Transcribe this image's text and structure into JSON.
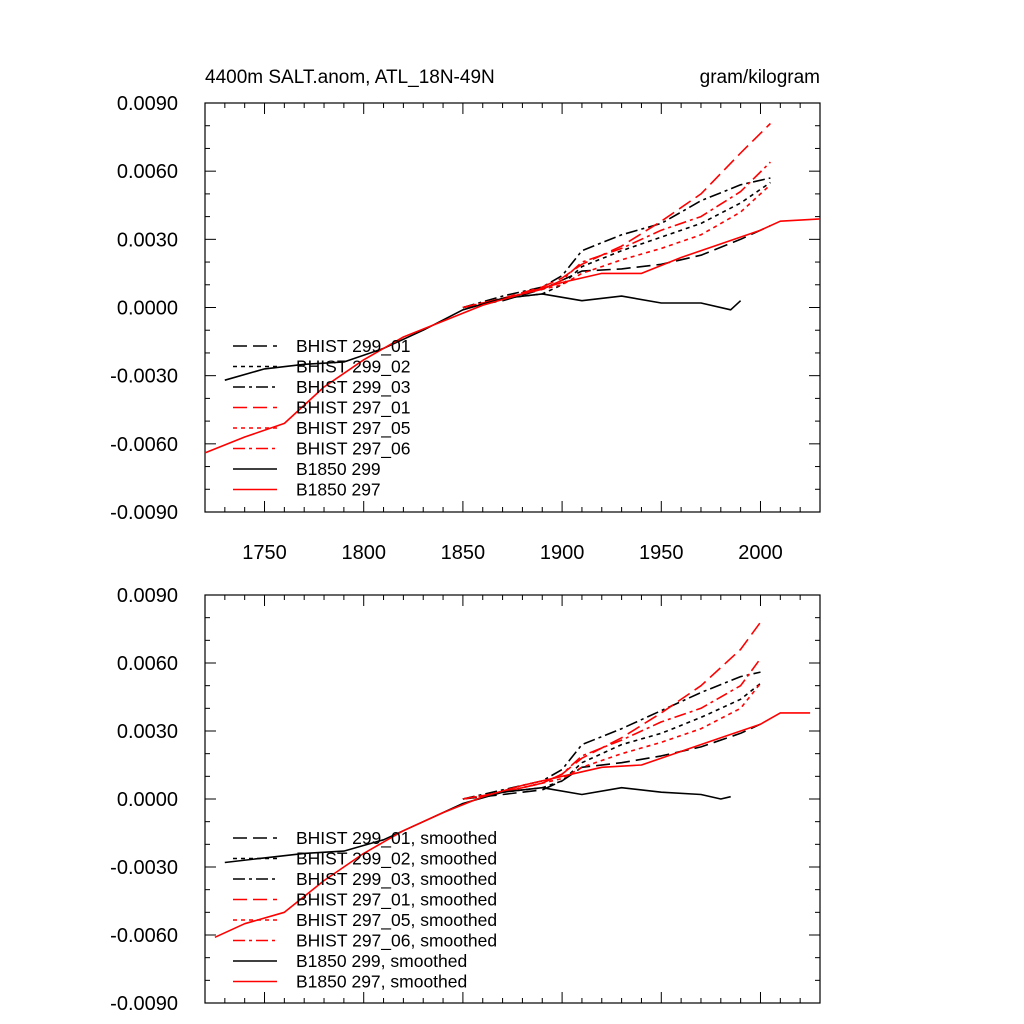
{
  "chart_data": [
    {
      "type": "line",
      "title_left": "4400m SALT.anom, ATL_18N-49N",
      "title_right": "gram/kilogram",
      "xlim": [
        1720,
        2030
      ],
      "ylim": [
        -0.009,
        0.009
      ],
      "xticks": [
        1750,
        1800,
        1850,
        1900,
        1950,
        2000
      ],
      "yticks": [
        -0.009,
        -0.006,
        -0.003,
        0.0,
        0.003,
        0.006,
        0.009
      ],
      "ytick_labels": [
        "-0.0090",
        "-0.0060",
        "-0.0030",
        "0.0000",
        "0.0030",
        "0.0060",
        "0.0090"
      ],
      "legend_position": "lower-left",
      "series": [
        {
          "name": "BHIST 299_01",
          "color": "#000000",
          "dash": "long",
          "x": [
            1850,
            1870,
            1890,
            1900,
            1910,
            1930,
            1950,
            1970,
            1990,
            2005
          ],
          "y": [
            0.0,
            0.0003,
            0.0008,
            0.0012,
            0.0016,
            0.0017,
            0.0019,
            0.0023,
            0.003,
            0.0036
          ]
        },
        {
          "name": "BHIST 299_02",
          "color": "#000000",
          "dash": "short",
          "x": [
            1850,
            1870,
            1890,
            1900,
            1910,
            1930,
            1950,
            1970,
            1990,
            2005
          ],
          "y": [
            0.0,
            0.0004,
            0.0006,
            0.001,
            0.0018,
            0.0025,
            0.0031,
            0.0037,
            0.0046,
            0.0055
          ]
        },
        {
          "name": "BHIST 299_03",
          "color": "#000000",
          "dash": "dashdot",
          "x": [
            1850,
            1870,
            1890,
            1900,
            1910,
            1930,
            1950,
            1970,
            1990,
            2005
          ],
          "y": [
            0.0,
            0.0005,
            0.0009,
            0.0014,
            0.0025,
            0.0032,
            0.0037,
            0.0047,
            0.0054,
            0.0057
          ]
        },
        {
          "name": "BHIST 297_01",
          "color": "#ff0000",
          "dash": "long",
          "x": [
            1850,
            1870,
            1890,
            1900,
            1910,
            1930,
            1950,
            1970,
            1990,
            2005
          ],
          "y": [
            0.0,
            0.0004,
            0.0009,
            0.0013,
            0.0019,
            0.0027,
            0.0038,
            0.005,
            0.0068,
            0.0081
          ]
        },
        {
          "name": "BHIST 297_05",
          "color": "#ff0000",
          "dash": "short",
          "x": [
            1850,
            1870,
            1890,
            1900,
            1910,
            1930,
            1950,
            1970,
            1990,
            2005
          ],
          "y": [
            0.0,
            0.0004,
            0.0008,
            0.001,
            0.0015,
            0.0021,
            0.0026,
            0.0032,
            0.0042,
            0.0054
          ]
        },
        {
          "name": "BHIST 297_06",
          "color": "#ff0000",
          "dash": "dashdot",
          "x": [
            1850,
            1870,
            1890,
            1900,
            1910,
            1930,
            1950,
            1970,
            1990,
            2005
          ],
          "y": [
            0.0,
            0.0004,
            0.0008,
            0.0012,
            0.002,
            0.0026,
            0.0034,
            0.004,
            0.0051,
            0.0064
          ]
        },
        {
          "name": "B1850 299",
          "color": "#000000",
          "dash": "solid",
          "x": [
            1730,
            1750,
            1770,
            1790,
            1810,
            1830,
            1850,
            1870,
            1890,
            1910,
            1930,
            1950,
            1970,
            1985,
            1990
          ],
          "y": [
            -0.0032,
            -0.0027,
            -0.0025,
            -0.0024,
            -0.0018,
            -0.001,
            -0.0001,
            0.0004,
            0.0006,
            0.0003,
            0.0005,
            0.0002,
            0.0002,
            -0.0001,
            0.0003
          ]
        },
        {
          "name": "B1850 297",
          "color": "#ff0000",
          "dash": "solid",
          "x": [
            1720,
            1740,
            1760,
            1780,
            1800,
            1820,
            1840,
            1860,
            1880,
            1900,
            1920,
            1940,
            1960,
            1980,
            2000,
            2010,
            2030
          ],
          "y": [
            -0.0064,
            -0.0057,
            -0.0051,
            -0.0035,
            -0.0023,
            -0.0013,
            -0.0006,
            0.0001,
            0.0006,
            0.0011,
            0.0015,
            0.0015,
            0.0022,
            0.0028,
            0.0034,
            0.0038,
            0.0039
          ]
        }
      ]
    },
    {
      "type": "line",
      "xlim": [
        1720,
        2030
      ],
      "ylim": [
        -0.009,
        0.009
      ],
      "xticks": [
        1750,
        1800,
        1850,
        1900,
        1950,
        2000
      ],
      "yticks": [
        -0.009,
        -0.006,
        -0.003,
        0.0,
        0.003,
        0.006,
        0.009
      ],
      "ytick_labels": [
        "-0.0090",
        "-0.0060",
        "-0.0030",
        "0.0000",
        "0.0030",
        "0.0060",
        "0.0090"
      ],
      "legend_position": "lower-left",
      "series": [
        {
          "name": "BHIST 299_01, smoothed",
          "color": "#000000",
          "dash": "long",
          "x": [
            1850,
            1870,
            1890,
            1900,
            1910,
            1930,
            1950,
            1970,
            1990,
            2000
          ],
          "y": [
            0.0,
            0.0002,
            0.0004,
            0.0008,
            0.0014,
            0.0016,
            0.0019,
            0.0023,
            0.0029,
            0.0033
          ]
        },
        {
          "name": "BHIST 299_02, smoothed",
          "color": "#000000",
          "dash": "short",
          "x": [
            1850,
            1870,
            1890,
            1900,
            1910,
            1930,
            1950,
            1970,
            1990,
            2000
          ],
          "y": [
            0.0,
            0.0003,
            0.0005,
            0.0008,
            0.0016,
            0.0024,
            0.0029,
            0.0036,
            0.0044,
            0.0051
          ]
        },
        {
          "name": "BHIST 299_03, smoothed",
          "color": "#000000",
          "dash": "dashdot",
          "x": [
            1850,
            1870,
            1890,
            1900,
            1910,
            1930,
            1950,
            1970,
            1990,
            2000
          ],
          "y": [
            0.0,
            0.0004,
            0.0008,
            0.0013,
            0.0024,
            0.0031,
            0.0039,
            0.0047,
            0.0054,
            0.0056
          ]
        },
        {
          "name": "BHIST 297_01, smoothed",
          "color": "#ff0000",
          "dash": "long",
          "x": [
            1850,
            1870,
            1890,
            1900,
            1910,
            1930,
            1950,
            1970,
            1990,
            2000
          ],
          "y": [
            0.0,
            0.0003,
            0.0007,
            0.0011,
            0.0018,
            0.0027,
            0.0038,
            0.005,
            0.0066,
            0.0078
          ]
        },
        {
          "name": "BHIST 297_05, smoothed",
          "color": "#ff0000",
          "dash": "short",
          "x": [
            1850,
            1870,
            1890,
            1900,
            1910,
            1930,
            1950,
            1970,
            1990,
            2000
          ],
          "y": [
            0.0,
            0.0003,
            0.0007,
            0.0009,
            0.0014,
            0.002,
            0.0025,
            0.0031,
            0.004,
            0.0051
          ]
        },
        {
          "name": "BHIST 297_06, smoothed",
          "color": "#ff0000",
          "dash": "dashdot",
          "x": [
            1850,
            1870,
            1890,
            1900,
            1910,
            1930,
            1950,
            1970,
            1990,
            2000
          ],
          "y": [
            0.0,
            0.0003,
            0.0007,
            0.0011,
            0.0019,
            0.0026,
            0.0034,
            0.004,
            0.005,
            0.0062
          ]
        },
        {
          "name": "B1850 299, smoothed",
          "color": "#000000",
          "dash": "solid",
          "x": [
            1730,
            1750,
            1770,
            1790,
            1810,
            1830,
            1850,
            1870,
            1890,
            1910,
            1930,
            1950,
            1970,
            1980,
            1985
          ],
          "y": [
            -0.0028,
            -0.0026,
            -0.0024,
            -0.0023,
            -0.0018,
            -0.001,
            -0.0002,
            0.0003,
            0.0005,
            0.0002,
            0.0005,
            0.0003,
            0.0002,
            0.0,
            0.0001
          ]
        },
        {
          "name": "B1850 297, smoothed",
          "color": "#ff0000",
          "dash": "solid",
          "x": [
            1725,
            1740,
            1760,
            1780,
            1800,
            1820,
            1840,
            1860,
            1880,
            1900,
            1920,
            1940,
            1960,
            1980,
            2000,
            2010,
            2025
          ],
          "y": [
            -0.0061,
            -0.0055,
            -0.005,
            -0.0036,
            -0.0024,
            -0.0014,
            -0.0006,
            0.0001,
            0.0006,
            0.001,
            0.0014,
            0.0015,
            0.0021,
            0.0027,
            0.0033,
            0.0038,
            0.0038
          ]
        }
      ]
    }
  ]
}
